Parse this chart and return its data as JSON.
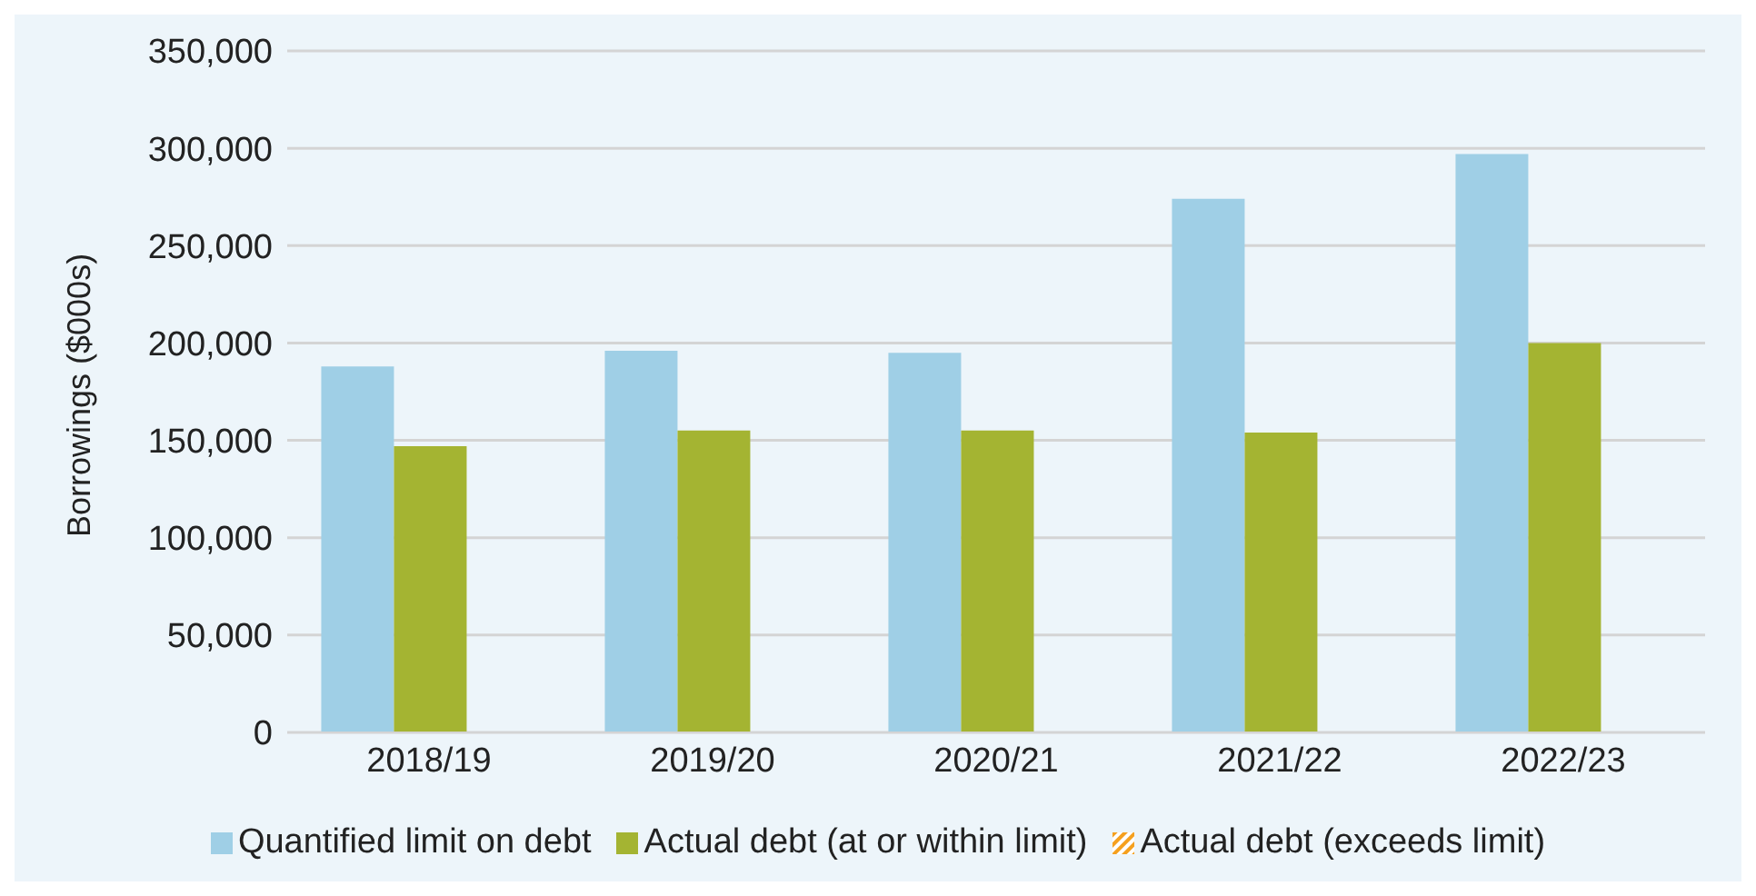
{
  "chart_data": {
    "type": "bar",
    "ylabel": "Borrowings ($000s)",
    "categories": [
      "2018/19",
      "2019/20",
      "2020/21",
      "2021/22",
      "2022/23"
    ],
    "series": [
      {
        "name": "Quantified limit on debt",
        "color": "#9fcfe6",
        "values": [
          188000,
          196000,
          195000,
          274000,
          297000
        ]
      },
      {
        "name": "Actual debt (at or within limit)",
        "color": "#a4b432",
        "values": [
          147000,
          155000,
          155000,
          154000,
          200000
        ]
      },
      {
        "name": "Actual debt (exceeds limit)",
        "color": "#f5a01e",
        "values": [
          null,
          null,
          null,
          null,
          null
        ]
      }
    ],
    "ylim": [
      0,
      350000
    ],
    "yticks": [
      0,
      {
        "value": 50000,
        "label": "50,000"
      },
      {
        "value": 100000,
        "label": "100,000"
      },
      {
        "value": 150000,
        "label": "150,000"
      },
      {
        "value": 200000,
        "label": "200,000"
      },
      {
        "value": 250000,
        "label": "250,000"
      },
      {
        "value": 300000,
        "label": "300,000"
      },
      {
        "value": 350000,
        "label": "350,000"
      }
    ],
    "grid": "y",
    "legend": "bottom"
  }
}
